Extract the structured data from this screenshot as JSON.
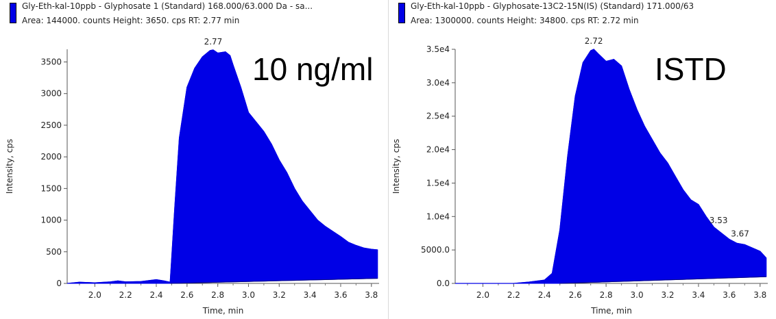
{
  "panels": [
    {
      "legend": "Gly-Eth-kal-10ppb - Glyphosate 1 (Standard) 168.000/63.000 Da - sa...",
      "info": "Area: 144000. counts  Height: 3650. cps  RT: 2.77 min",
      "overlay_label": "10 ng/ml",
      "ylabel": "Intensity, cps",
      "xlabel": "Time, min"
    },
    {
      "legend": "Gly-Eth-kal-10ppb - Glyphosate-13C2-15N(IS) (Standard) 171.000/63",
      "info": "Area: 1300000. counts  Height: 34800. cps  RT: 2.72 min",
      "overlay_label": "ISTD",
      "ylabel": "Intensity, cps",
      "xlabel": "Time, min"
    }
  ],
  "chart_data": [
    {
      "type": "area",
      "title": "Gly-Eth-kal-10ppb - Glyphosate 1 (Standard) 168.000/63.000 Da - sa...",
      "xlabel": "Time, min",
      "ylabel": "Intensity, cps",
      "xlim": [
        1.82,
        3.85
      ],
      "ylim": [
        0,
        3700
      ],
      "x_ticks": [
        "2.0",
        "2.2",
        "2.4",
        "2.6",
        "2.8",
        "3.0",
        "3.2",
        "3.4",
        "3.6",
        "3.8"
      ],
      "y_ticks": [
        "0",
        "500",
        "1000",
        "1500",
        "2000",
        "2500",
        "3000",
        "3500"
      ],
      "color": "#0000e6",
      "peak_labels": [
        {
          "x": 2.77,
          "y": 3690,
          "text": "2.77"
        }
      ],
      "series": [
        {
          "x": [
            1.82,
            1.9,
            2.0,
            2.1,
            2.15,
            2.2,
            2.3,
            2.4,
            2.45,
            2.49,
            2.5,
            2.52,
            2.55,
            2.6,
            2.65,
            2.7,
            2.75,
            2.77,
            2.8,
            2.85,
            2.88,
            2.9,
            2.95,
            3.0,
            3.05,
            3.1,
            3.15,
            3.2,
            3.25,
            3.3,
            3.35,
            3.4,
            3.45,
            3.5,
            3.55,
            3.6,
            3.65,
            3.7,
            3.75,
            3.8,
            3.84
          ],
          "y": [
            0,
            20,
            10,
            25,
            40,
            25,
            30,
            60,
            40,
            20,
            400,
            1200,
            2300,
            3100,
            3400,
            3580,
            3680,
            3690,
            3640,
            3660,
            3600,
            3450,
            3100,
            2700,
            2550,
            2400,
            2200,
            1950,
            1750,
            1500,
            1300,
            1150,
            1000,
            900,
            820,
            740,
            650,
            600,
            560,
            540,
            530
          ]
        }
      ],
      "baseline": {
        "x": [
          2.49,
          3.84
        ],
        "y": [
          0,
          80
        ]
      }
    },
    {
      "type": "area",
      "title": "Gly-Eth-kal-10ppb - Glyphosate-13C2-15N(IS) (Standard) 171.000/63",
      "xlabel": "Time, min",
      "ylabel": "Intensity, cps",
      "xlim": [
        1.82,
        3.85
      ],
      "ylim": [
        0,
        35000
      ],
      "x_ticks": [
        "2.0",
        "2.2",
        "2.4",
        "2.6",
        "2.8",
        "3.0",
        "3.2",
        "3.4",
        "3.6",
        "3.8"
      ],
      "y_ticks": [
        "0.0",
        "5000.0",
        "1.0e4",
        "1.5e4",
        "2.0e4",
        "2.5e4",
        "3.0e4",
        "3.5e4"
      ],
      "color": "#0000e6",
      "peak_labels": [
        {
          "x": 2.72,
          "y": 35000,
          "text": "2.72"
        },
        {
          "x": 3.53,
          "y": 8200,
          "text": "3.53"
        },
        {
          "x": 3.67,
          "y": 6200,
          "text": "3.67"
        }
      ],
      "series": [
        {
          "x": [
            1.82,
            2.0,
            2.2,
            2.3,
            2.4,
            2.45,
            2.5,
            2.55,
            2.6,
            2.65,
            2.7,
            2.72,
            2.75,
            2.8,
            2.85,
            2.9,
            2.95,
            3.0,
            3.05,
            3.1,
            3.15,
            3.2,
            3.25,
            3.3,
            3.35,
            3.4,
            3.45,
            3.5,
            3.55,
            3.6,
            3.65,
            3.7,
            3.75,
            3.8,
            3.84
          ],
          "y": [
            0,
            0,
            0,
            200,
            500,
            1500,
            8000,
            19000,
            28000,
            33000,
            34800,
            35000,
            34300,
            33200,
            33500,
            32500,
            29000,
            26000,
            23500,
            21500,
            19500,
            18000,
            16000,
            14000,
            12500,
            11800,
            10000,
            8400,
            7500,
            6600,
            6000,
            5800,
            5300,
            4800,
            3800
          ]
        }
      ],
      "baseline": {
        "x": [
          2.5,
          3.84
        ],
        "y": [
          0,
          1000
        ]
      }
    }
  ]
}
